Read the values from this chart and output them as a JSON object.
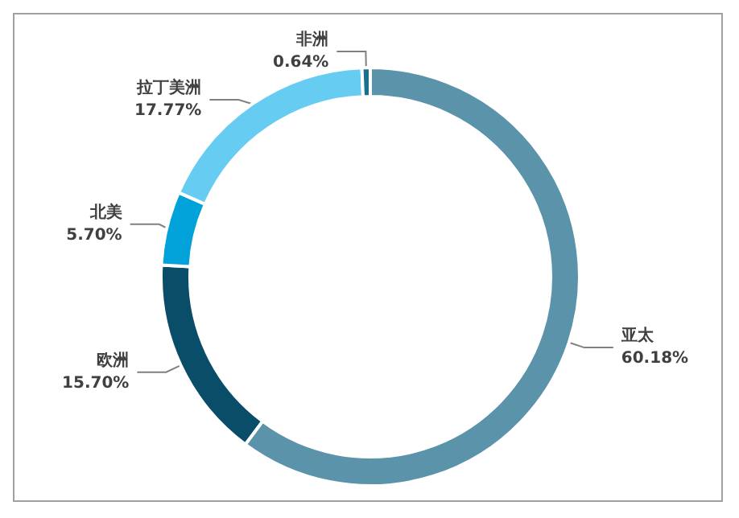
{
  "chart_data": {
    "type": "donut",
    "categories": [
      "亚太",
      "欧洲",
      "北美",
      "拉丁美洲",
      "非洲"
    ],
    "values": [
      60.18,
      15.7,
      5.7,
      17.77,
      0.64
    ],
    "colors": [
      "#5b93aa",
      "#0a4d68",
      "#00a2d9",
      "#66ccf2",
      "#1a6f8f"
    ],
    "value_labels": [
      "60.18%",
      "15.70%",
      "5.70%",
      "17.77%",
      "0.64%"
    ],
    "legend": false
  }
}
